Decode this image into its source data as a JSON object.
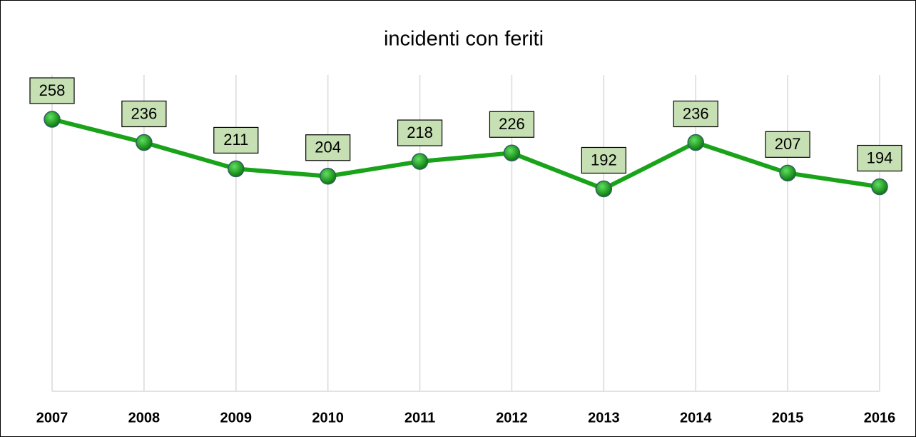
{
  "chart_data": {
    "type": "line",
    "title": "incidenti con feriti",
    "categories": [
      "2007",
      "2008",
      "2009",
      "2010",
      "2011",
      "2012",
      "2013",
      "2014",
      "2015",
      "2016"
    ],
    "series": [
      {
        "name": "incidenti con feriti",
        "color": "#19a319",
        "values": [
          258,
          236,
          211,
          204,
          218,
          226,
          192,
          236,
          207,
          194
        ]
      }
    ],
    "ylim": [
      0,
      300
    ],
    "grid": true
  }
}
